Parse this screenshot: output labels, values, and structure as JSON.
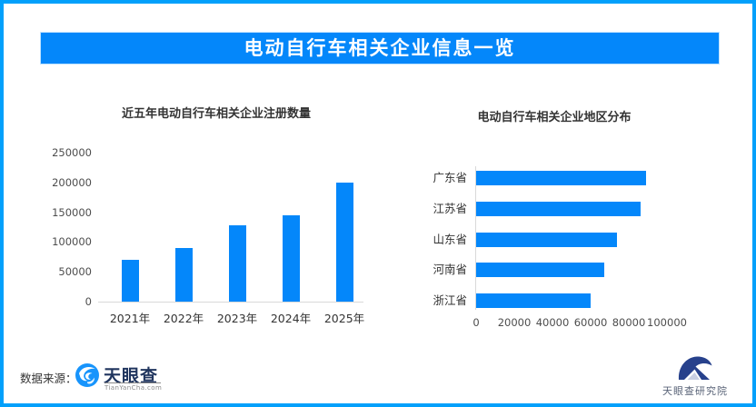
{
  "header": {
    "title": "电动自行车相关企业信息一览"
  },
  "colors": {
    "frame_border": "#02a0fb",
    "banner_bg": "#0487fa",
    "bar": "#0487fa",
    "axis_line": "#d9d9d9",
    "chart_title_text": "#333333",
    "tick_text": "#4d4d4d",
    "tianyancha_navy": "#20355e",
    "tianyancha_blue": "#1794fc",
    "research_navy": "#27418c"
  },
  "chart_data": [
    {
      "type": "bar",
      "title": "近五年电动自行车相关企业注册数量",
      "categories": [
        "2021年",
        "2022年",
        "2023年",
        "2024年",
        "2025年"
      ],
      "values": [
        70000,
        90000,
        128000,
        145000,
        200000
      ],
      "ylim": [
        0,
        250000
      ],
      "yticks": [
        0,
        50000,
        100000,
        150000,
        200000,
        250000
      ],
      "xlabel": "",
      "ylabel": "",
      "grid": false,
      "legend": "none",
      "bar_color": "#0487fa"
    },
    {
      "type": "barh",
      "title": "电动自行车相关企业地区分布",
      "categories": [
        "广东省",
        "江苏省",
        "山东省",
        "河南省",
        "浙江省"
      ],
      "values": [
        89000,
        86000,
        74000,
        67000,
        60000
      ],
      "xlim": [
        0,
        100000
      ],
      "xticks": [
        0,
        20000,
        40000,
        60000,
        80000,
        100000
      ],
      "xlabel": "",
      "ylabel": "",
      "grid": false,
      "legend": "none",
      "bar_color": "#0487fa"
    }
  ],
  "footer": {
    "source_label": "数据来源：",
    "tianyancha": {
      "name": "天眼查",
      "domain": "TianYanCha.com"
    },
    "research": {
      "name": "天眼查研究院"
    }
  }
}
